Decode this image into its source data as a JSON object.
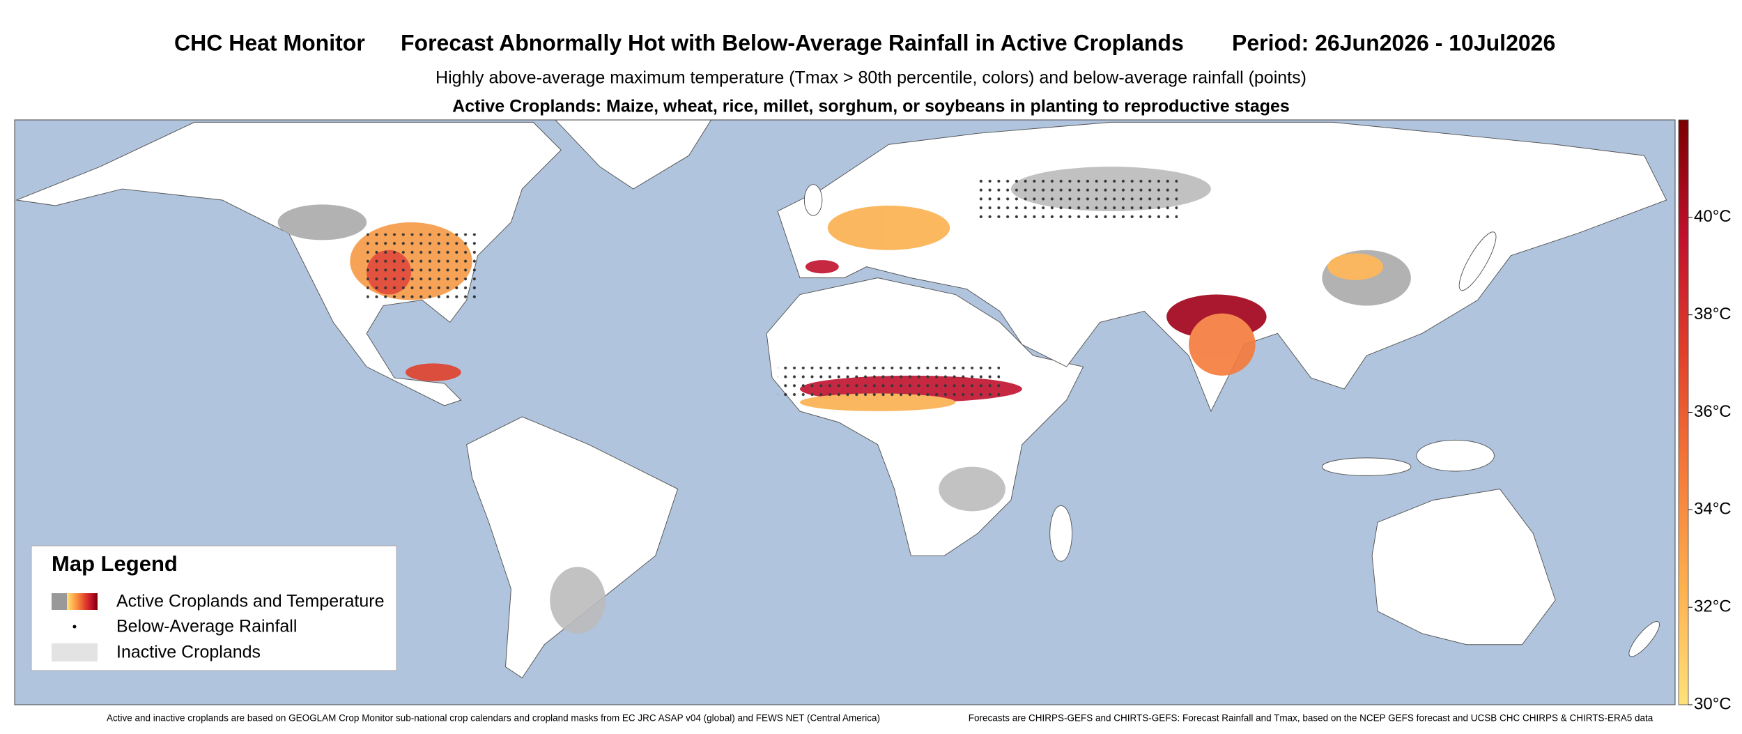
{
  "header": {
    "title": "CHC Heat Monitor",
    "headline": "Forecast Abnormally Hot with Below-Average Rainfall in Active Croplands",
    "period": "Period: 26Jun2026 - 10Jul2026",
    "subtitle": "Highly above-average maximum temperature (Tmax > 80th percentile, colors) and below-average rainfall (points)",
    "crop_note": "Active Croplands: Maize, wheat, rice, millet, sorghum, or soybeans in planting to reproductive stages"
  },
  "chart_data": {
    "type": "colorbar",
    "ylim": [
      30,
      42
    ],
    "yticks": [
      {
        "value": 30,
        "label": "30°C"
      },
      {
        "value": 32,
        "label": "32°C"
      },
      {
        "value": 34,
        "label": "34°C"
      },
      {
        "value": 36,
        "label": "36°C"
      },
      {
        "value": 38,
        "label": "38°C"
      },
      {
        "value": 40,
        "label": "40°C"
      }
    ],
    "colors": [
      "#fee27a",
      "#fdb14f",
      "#f57a3a",
      "#e0402a",
      "#c0112e",
      "#7a0000"
    ]
  },
  "legend": {
    "title": "Map Legend",
    "items": [
      "Active Croplands and Temperature",
      "Below-Average Rainfall",
      "Inactive Croplands"
    ]
  },
  "footer": {
    "left": "Active and inactive croplands are based on GEOGLAM Crop Monitor sub-national crop calendars and cropland masks from EC JRC ASAP v04 (global) and FEWS NET (Central America)",
    "right": "Forecasts are CHIRPS-GEFS and CHIRTS-GEFS: Forecast Rainfall and Tmax, based on the NCEP GEFS forecast and UCSB CHC CHIRPS & CHIRTS-ERA5 data"
  }
}
